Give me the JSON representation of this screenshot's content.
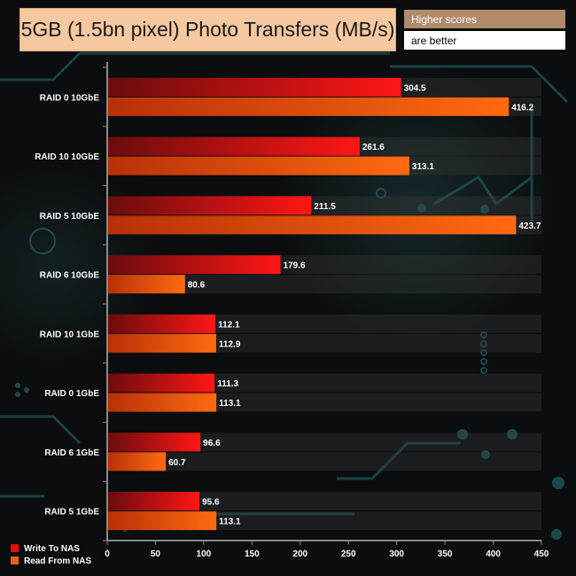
{
  "title": "5GB (1.5bn pixel) Photo Transfers (MB/s)",
  "note_line1": "Higher scores",
  "note_line2": "are better",
  "chart_data": {
    "type": "bar",
    "orientation": "horizontal",
    "title": "5GB (1.5bn pixel) Photo Transfers (MB/s)",
    "categories": [
      "RAID 0 10GbE",
      "RAID 10 10GbE",
      "RAID 5 10GbE",
      "RAID 6 10GbE",
      "RAID 10 1GbE",
      "RAID 0 1GbE",
      "RAID 6 1GbE",
      "RAID 5 1GbE"
    ],
    "series": [
      {
        "name": "Write To NAS",
        "color": "#e01010",
        "values": [
          304.5,
          261.6,
          211.5,
          179.6,
          112.1,
          111.3,
          96.6,
          95.6
        ]
      },
      {
        "name": "Read From NAS",
        "color": "#f06010",
        "values": [
          416.2,
          313.1,
          423.7,
          80.6,
          112.9,
          113.1,
          60.7,
          113.1
        ]
      }
    ],
    "xlim": [
      0,
      450
    ],
    "xticks": [
      0,
      50,
      100,
      150,
      200,
      250,
      300,
      350,
      400,
      450
    ],
    "legend": "bottom-left",
    "grid": false
  }
}
